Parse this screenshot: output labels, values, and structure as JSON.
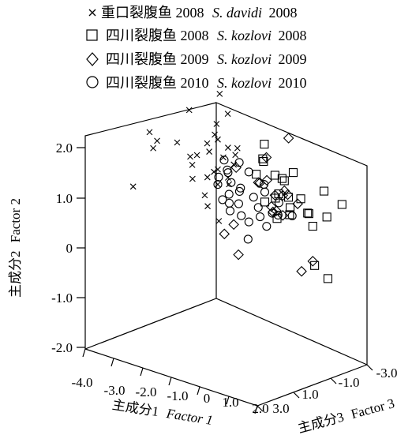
{
  "chart_data": {
    "type": "scatter",
    "projection": "3d",
    "title": "",
    "axes": {
      "x": {
        "label_cn": "主成分1",
        "label_en": "Factor 1",
        "range": [
          -4.0,
          2.0
        ],
        "ticks": [
          "-4.0",
          "-3.0",
          "-2.0",
          "-1.0",
          "0",
          "1.0",
          "2.0"
        ]
      },
      "y": {
        "label_cn": "主成分2",
        "label_en": "Factor 2",
        "range": [
          -2.0,
          2.0
        ],
        "ticks": [
          "2.0",
          "1.0",
          "0",
          "-1.0",
          "-2.0"
        ]
      },
      "z": {
        "label_cn": "主成分3",
        "label_en": "Factor 3",
        "range": [
          -3.0,
          3.0
        ],
        "ticks": [
          "3.0",
          "1.0",
          "-1.0",
          "-3.0"
        ]
      }
    },
    "legend_position": "top",
    "series": [
      {
        "name_cn": "重口裂腹鱼 2008",
        "name_sci": "S. davidi",
        "name_year": "2008",
        "marker": "x",
        "points": [
          [
            -3.2,
            -0.3,
            0.2
          ],
          [
            -2.5,
            0.95,
            0.4
          ],
          [
            -2.3,
            0.8,
            0.3
          ],
          [
            -2.5,
            0.6,
            0.2
          ],
          [
            -1.6,
            0.9,
            0.3
          ],
          [
            -1.5,
            1.5,
            -0.2
          ],
          [
            -1.4,
            0.6,
            -0.1
          ],
          [
            -0.8,
            1.3,
            -0.6
          ],
          [
            -0.8,
            1.1,
            -0.5
          ],
          [
            -1.0,
            0.9,
            -0.4
          ],
          [
            -1.2,
            0.5,
            0.1
          ],
          [
            -0.7,
            0.4,
            -0.3
          ],
          [
            -0.5,
            0.2,
            -0.2
          ],
          [
            -0.6,
            1.5,
            -0.9
          ],
          [
            -0.4,
            0.9,
            -0.6
          ],
          [
            -0.5,
            0.7,
            -0.5
          ],
          [
            -0.7,
            0.0,
            0.2
          ],
          [
            -0.5,
            0.5,
            -0.2
          ],
          [
            -0.4,
            0.3,
            -0.6
          ],
          [
            -0.3,
            0.2,
            -0.5
          ],
          [
            -0.6,
            -0.2,
            0.2
          ],
          [
            -0.4,
            0.7,
            -1.0
          ],
          [
            -0.8,
            0.8,
            -0.2
          ],
          [
            -1.1,
            0.7,
            0.0
          ],
          [
            -0.2,
            0.9,
            -0.8
          ],
          [
            -0.8,
            0.3,
            -0.1
          ],
          [
            -0.5,
            1.1,
            -0.2
          ],
          [
            -1.0,
            0.3,
            0.4
          ],
          [
            -0.4,
            -0.5,
            -0.1
          ],
          [
            -0.5,
            2.0,
            -0.3
          ],
          [
            -0.2,
            0.6,
            -0.6
          ]
        ]
      },
      {
        "name_cn": "四川裂腹鱼 2008",
        "name_sci": "S. kozlovi",
        "name_year": "2008",
        "marker": "square",
        "points": [
          [
            0.1,
            0.9,
            -1.8
          ],
          [
            0.2,
            0.6,
            -1.6
          ],
          [
            0.4,
            0.2,
            -2.3
          ],
          [
            0.6,
            -0.5,
            -2.4
          ],
          [
            0.6,
            0.0,
            -1.8
          ],
          [
            0.8,
            0.3,
            -1.8
          ],
          [
            1.1,
            -0.4,
            -2.6
          ],
          [
            1.4,
            -0.3,
            -2.2
          ],
          [
            1.6,
            -0.5,
            -2.1
          ],
          [
            1.0,
            -0.2,
            -1.8
          ],
          [
            1.2,
            0.1,
            -1.4
          ],
          [
            1.8,
            0.2,
            -2.4
          ],
          [
            2.3,
            0.0,
            -2.6
          ],
          [
            1.9,
            -0.3,
            -2.4
          ],
          [
            1.6,
            -1.3,
            -2.2
          ],
          [
            2.0,
            -1.5,
            -2.3
          ],
          [
            0.5,
            -0.1,
            -1.2
          ],
          [
            0.8,
            -0.4,
            -1.4
          ],
          [
            1.0,
            0.1,
            -1.0
          ],
          [
            1.5,
            0.1,
            -1.6
          ],
          [
            0.3,
            0.7,
            -1.4
          ],
          [
            0.6,
            0.4,
            -1.6
          ],
          [
            0.2,
            0.4,
            -1.2
          ],
          [
            1.3,
            0.6,
            -1.5
          ]
        ]
      },
      {
        "name_cn": "四川裂腹鱼 2009",
        "name_sci": "S. kozlovi",
        "name_year": "2009",
        "marker": "diamond",
        "points": [
          [
            0.5,
            1.0,
            -2.5
          ],
          [
            -0.5,
            0.4,
            -1.2
          ],
          [
            0.3,
            0.7,
            -1.6
          ],
          [
            0.2,
            0.2,
            -1.4
          ],
          [
            0.8,
            0.1,
            -1.8
          ],
          [
            1.0,
            0.1,
            -1.4
          ],
          [
            0.6,
            0.0,
            -1.6
          ],
          [
            0.6,
            -0.2,
            -1.4
          ],
          [
            1.2,
            -0.1,
            -1.9
          ],
          [
            0.4,
            -0.4,
            -1.8
          ],
          [
            1.0,
            -0.3,
            -1.4
          ],
          [
            -0.2,
            -0.6,
            -0.6
          ],
          [
            -0.4,
            -0.8,
            -0.4
          ],
          [
            -0.1,
            -1.2,
            -0.7
          ],
          [
            1.4,
            -1.4,
            -1.8
          ],
          [
            1.6,
            -1.2,
            -2.1
          ],
          [
            1.3,
            0.2,
            -1.2
          ],
          [
            0.7,
            0.4,
            -1.0
          ],
          [
            0.4,
            0.3,
            -1.0
          ],
          [
            0.9,
            -0.2,
            -1.2
          ]
        ]
      },
      {
        "name_cn": "四川裂腹鱼 2010",
        "name_sci": "S. kozlovi",
        "name_year": "2010",
        "marker": "circle",
        "points": [
          [
            -0.6,
            0.6,
            -0.7
          ],
          [
            -0.3,
            0.5,
            -0.4
          ],
          [
            -0.5,
            0.2,
            -0.2
          ],
          [
            -0.3,
            0.0,
            -0.5
          ],
          [
            -0.1,
            0.3,
            -0.3
          ],
          [
            0.0,
            0.1,
            -0.6
          ],
          [
            0.2,
            0.5,
            -0.8
          ],
          [
            0.1,
            -0.1,
            -0.4
          ],
          [
            -0.2,
            -0.3,
            -0.4
          ],
          [
            0.3,
            0.0,
            -0.9
          ],
          [
            0.4,
            -0.2,
            -1.0
          ],
          [
            0.5,
            0.1,
            -1.2
          ],
          [
            0.0,
            -0.4,
            -0.7
          ],
          [
            0.2,
            -0.5,
            -0.8
          ],
          [
            0.7,
            -0.3,
            -1.3
          ],
          [
            0.8,
            -0.1,
            -1.5
          ],
          [
            0.9,
            -0.3,
            -1.3
          ],
          [
            -0.4,
            -0.1,
            -0.3
          ],
          [
            -0.6,
            0.3,
            -0.4
          ],
          [
            0.6,
            0.3,
            -1.0
          ],
          [
            1.2,
            -0.3,
            -1.6
          ],
          [
            0.3,
            -0.8,
            -0.6
          ],
          [
            -0.2,
            0.6,
            -0.9
          ],
          [
            0.1,
            0.2,
            -0.5
          ],
          [
            0.4,
            -0.4,
            -1.1
          ],
          [
            -0.1,
            -0.1,
            -0.2
          ],
          [
            -0.4,
            0.4,
            -0.6
          ],
          [
            0.5,
            -0.6,
            -1.3
          ]
        ]
      }
    ]
  }
}
